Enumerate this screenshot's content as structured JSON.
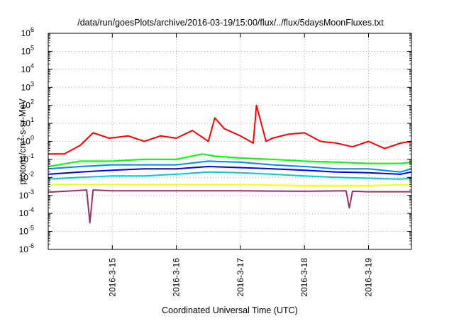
{
  "chart_data": {
    "type": "line",
    "title": "/data/run/goesPlots/archive/2016-03-19/15:00/flux/../flux/5daysMoonFluxes.txt",
    "xlabel": "Coordinated Universal Time (UTC)",
    "ylabel": {
      "prefix": "protons/cm",
      "sup": "2",
      "suffix": "-s-sr-MeV"
    },
    "yscale": "log",
    "ylim": [
      1e-06,
      1000000.0
    ],
    "xlim": [
      14.0,
      19.67
    ],
    "grid": true,
    "y_ticks": [
      {
        "value": -6,
        "base": "10",
        "exp": "-6"
      },
      {
        "value": -5,
        "base": "10",
        "exp": "-5"
      },
      {
        "value": -4,
        "base": "10",
        "exp": "-4"
      },
      {
        "value": -3,
        "base": "10",
        "exp": "-3"
      },
      {
        "value": -2,
        "base": "10",
        "exp": "-2"
      },
      {
        "value": -1,
        "base": "10",
        "exp": "-1"
      },
      {
        "value": 0,
        "base": "10",
        "exp": "0"
      },
      {
        "value": 1,
        "base": "10",
        "exp": "1"
      },
      {
        "value": 2,
        "base": "10",
        "exp": "2"
      },
      {
        "value": 3,
        "base": "10",
        "exp": "3"
      },
      {
        "value": 4,
        "base": "10",
        "exp": "4"
      },
      {
        "value": 5,
        "base": "10",
        "exp": "5"
      },
      {
        "value": 6,
        "base": "10",
        "exp": "6"
      }
    ],
    "x_ticks": [
      {
        "value": 15,
        "label": "2016-3-15"
      },
      {
        "value": 16,
        "label": "2016-3-16"
      },
      {
        "value": 17,
        "label": "2016-3-17"
      },
      {
        "value": 18,
        "label": "2016-3-18"
      },
      {
        "value": 19,
        "label": "2016-3-19"
      }
    ],
    "series": [
      {
        "color": "#ff0000",
        "x": [
          14.0,
          14.25,
          14.5,
          14.7,
          14.95,
          15.25,
          15.5,
          15.75,
          16.0,
          16.25,
          16.5,
          16.6,
          16.75,
          17.0,
          17.2,
          17.25,
          17.4,
          17.5,
          17.75,
          18.0,
          18.25,
          18.5,
          18.75,
          19.0,
          19.25,
          19.5,
          19.67
        ],
        "y": [
          0.2,
          0.2,
          0.6,
          3,
          1.5,
          2,
          1,
          2,
          1.5,
          4,
          1,
          20,
          5,
          2,
          0.8,
          100,
          1,
          1.5,
          2.5,
          3,
          1,
          0.8,
          0.5,
          1,
          0.4,
          0.8,
          1
        ]
      },
      {
        "color": "#00ff00",
        "x": [
          14.0,
          14.5,
          15.0,
          15.5,
          16.0,
          16.4,
          16.6,
          17.0,
          17.5,
          18.0,
          18.5,
          19.0,
          19.5,
          19.67
        ],
        "y": [
          0.04,
          0.08,
          0.08,
          0.1,
          0.1,
          0.2,
          0.15,
          0.12,
          0.1,
          0.08,
          0.07,
          0.06,
          0.06,
          0.07
        ]
      },
      {
        "color": "#0088ff",
        "x": [
          14.0,
          14.5,
          15.0,
          15.5,
          16.0,
          16.5,
          17.0,
          17.5,
          18.0,
          18.5,
          19.0,
          19.5,
          19.67
        ],
        "y": [
          0.03,
          0.04,
          0.05,
          0.05,
          0.05,
          0.08,
          0.07,
          0.05,
          0.04,
          0.03,
          0.03,
          0.02,
          0.03
        ]
      },
      {
        "color": "#0000ff",
        "x": [
          14.0,
          14.5,
          15.0,
          15.5,
          16.0,
          16.5,
          17.0,
          17.5,
          18.0,
          18.5,
          19.0,
          19.5,
          19.67
        ],
        "y": [
          0.015,
          0.02,
          0.025,
          0.03,
          0.03,
          0.04,
          0.035,
          0.03,
          0.025,
          0.02,
          0.018,
          0.015,
          0.02
        ]
      },
      {
        "color": "#00cccc",
        "x": [
          14.0,
          14.5,
          15.0,
          15.5,
          16.0,
          16.5,
          17.0,
          17.5,
          18.0,
          18.5,
          19.0,
          19.5,
          19.67
        ],
        "y": [
          0.008,
          0.01,
          0.012,
          0.012,
          0.015,
          0.02,
          0.018,
          0.015,
          0.012,
          0.01,
          0.009,
          0.008,
          0.009
        ]
      },
      {
        "color": "#ffff00",
        "x": [
          14.0,
          15.0,
          16.0,
          17.0,
          18.0,
          19.0,
          19.67
        ],
        "y": [
          0.004,
          0.004,
          0.004,
          0.004,
          0.0035,
          0.0035,
          0.004
        ]
      },
      {
        "color": "#993366",
        "x": [
          14.0,
          14.6,
          14.65,
          14.7,
          15.0,
          16.0,
          17.0,
          18.0,
          18.65,
          18.7,
          18.75,
          19.0,
          19.67
        ],
        "y": [
          0.0015,
          0.002,
          3e-05,
          0.002,
          0.0018,
          0.0018,
          0.0018,
          0.0017,
          0.0018,
          0.0002,
          0.0017,
          0.0016,
          0.0016
        ]
      }
    ]
  }
}
